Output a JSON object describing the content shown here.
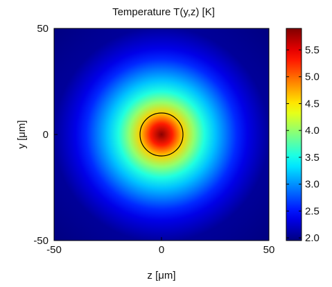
{
  "chart_data": {
    "type": "heatmap",
    "title": "Temperature T(y,z) [K]",
    "xlabel": "z [μm]",
    "ylabel": "y [μm]",
    "xlim": [
      -50,
      50
    ],
    "ylim": [
      -50,
      50
    ],
    "x_ticks": [
      "-50",
      "0",
      "50"
    ],
    "x_tick_values": [
      -50,
      0,
      50
    ],
    "y_ticks": [
      "50",
      "0",
      "-50"
    ],
    "y_tick_values": [
      50,
      0,
      -50
    ],
    "field": {
      "description_source": "radially symmetric hot spot centered at origin",
      "center": [
        0,
        0
      ],
      "peak_value": 5.85,
      "samples_radius_um": [
        0,
        5,
        10,
        15,
        20,
        25,
        30,
        35,
        40,
        50,
        71
      ],
      "samples_value_K": [
        5.85,
        5.3,
        4.6,
        4.0,
        3.55,
        3.2,
        2.9,
        2.6,
        2.35,
        2.05,
        1.95
      ]
    },
    "contour": {
      "center": [
        0,
        0
      ],
      "radius_um": 10,
      "color": "#000000"
    },
    "colorbar": {
      "range": [
        1.95,
        5.9
      ],
      "ticks": [
        "2.0",
        "2.5",
        "3.0",
        "3.5",
        "4.0",
        "4.5",
        "5.0",
        "5.5"
      ],
      "tick_values": [
        2.0,
        2.5,
        3.0,
        3.5,
        4.0,
        4.5,
        5.0,
        5.5
      ],
      "colormap": "jet"
    }
  }
}
